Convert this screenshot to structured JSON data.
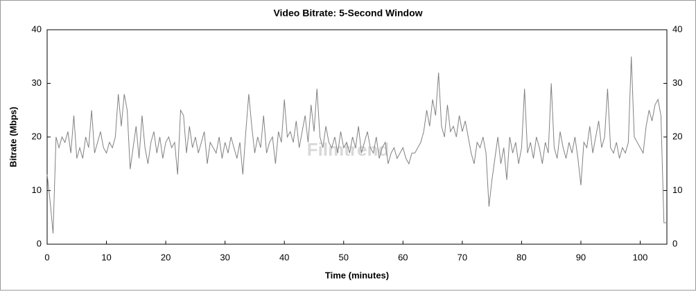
{
  "chart_data": {
    "type": "line",
    "title": "Video Bitrate: 5-Second Window",
    "watermark": "Filmtrend",
    "x_label": "Time (minutes)",
    "y_label": "Bitrate (Mbps)",
    "x": [
      0,
      0.5,
      1,
      1.5,
      2,
      2.5,
      3,
      3.5,
      4,
      4.5,
      5,
      5.5,
      6,
      6.5,
      7,
      7.5,
      8,
      8.5,
      9,
      9.5,
      10,
      10.5,
      11,
      11.5,
      12,
      12.5,
      13,
      13.5,
      14,
      14.5,
      15,
      15.5,
      16,
      16.5,
      17,
      17.5,
      18,
      18.5,
      19,
      19.5,
      20,
      20.5,
      21,
      21.5,
      22,
      22.5,
      23,
      23.5,
      24,
      24.5,
      25,
      25.5,
      26,
      26.5,
      27,
      27.5,
      28,
      28.5,
      29,
      29.5,
      30,
      30.5,
      31,
      31.5,
      32,
      32.5,
      33,
      33.5,
      34,
      34.5,
      35,
      35.5,
      36,
      36.5,
      37,
      37.5,
      38,
      38.5,
      39,
      39.5,
      40,
      40.5,
      41,
      41.5,
      42,
      42.5,
      43,
      43.5,
      44,
      44.5,
      45,
      45.5,
      46,
      46.5,
      47,
      47.5,
      48,
      48.5,
      49,
      49.5,
      50,
      50.5,
      51,
      51.5,
      52,
      52.5,
      53,
      53.5,
      54,
      54.5,
      55,
      55.5,
      56,
      56.5,
      57,
      57.5,
      58,
      58.5,
      59,
      59.5,
      60,
      60.5,
      61,
      61.5,
      62,
      62.5,
      63,
      63.5,
      64,
      64.5,
      65,
      65.5,
      66,
      66.5,
      67,
      67.5,
      68,
      68.5,
      69,
      69.5,
      70,
      70.5,
      71,
      71.5,
      72,
      72.5,
      73,
      73.5,
      74,
      74.5,
      75,
      75.5,
      76,
      76.5,
      77,
      77.5,
      78,
      78.5,
      79,
      79.5,
      80,
      80.5,
      81,
      81.5,
      82,
      82.5,
      83,
      83.5,
      84,
      84.5,
      85,
      85.5,
      86,
      86.5,
      87,
      87.5,
      88,
      88.5,
      89,
      89.5,
      90,
      90.5,
      91,
      91.5,
      92,
      92.5,
      93,
      93.5,
      94,
      94.5,
      95,
      95.5,
      96,
      96.5,
      97,
      97.5,
      98,
      98.5,
      99,
      99.5,
      100,
      100.5,
      101,
      101.5,
      102,
      102.5,
      103,
      103.5,
      104,
      104.5
    ],
    "series": [
      {
        "name": "Video Bitrate",
        "color": "#808080",
        "values": [
          13,
          8,
          2,
          20,
          18,
          20,
          19,
          21,
          17,
          24,
          16,
          18,
          16,
          20,
          18,
          25,
          17,
          19,
          21,
          18,
          17,
          19,
          18,
          20,
          28,
          22,
          28,
          25,
          14,
          18,
          22,
          16,
          24,
          18,
          15,
          19,
          21,
          17,
          20,
          16,
          19,
          20,
          18,
          19,
          13,
          25,
          24,
          17,
          22,
          18,
          20,
          17,
          19,
          21,
          15,
          19,
          18,
          17,
          20,
          16,
          19,
          17,
          20,
          18,
          16,
          19,
          13,
          21,
          28,
          22,
          17,
          20,
          18,
          24,
          17,
          19,
          20,
          15,
          21,
          19,
          27,
          20,
          21,
          19,
          23,
          18,
          21,
          24,
          19,
          26,
          21,
          29,
          20,
          18,
          22,
          19,
          18,
          20,
          17,
          21,
          18,
          19,
          17,
          20,
          18,
          22,
          17,
          19,
          21,
          18,
          17,
          20,
          16,
          18,
          19,
          15,
          17,
          18,
          16,
          17,
          18,
          16,
          15,
          17,
          17,
          18,
          19,
          21,
          25,
          22,
          27,
          24,
          32,
          22,
          20,
          26,
          21,
          22,
          20,
          24,
          21,
          23,
          20,
          17,
          15,
          19,
          18,
          20,
          17,
          7,
          12,
          16,
          20,
          15,
          18,
          12,
          20,
          17,
          19,
          15,
          18,
          29,
          17,
          19,
          16,
          20,
          18,
          15,
          19,
          17,
          30,
          18,
          16,
          21,
          18,
          16,
          19,
          17,
          20,
          16,
          11,
          19,
          18,
          22,
          17,
          20,
          23,
          18,
          20,
          29,
          18,
          17,
          19,
          16,
          18,
          17,
          19,
          35,
          20,
          19,
          18,
          17,
          22,
          25,
          23,
          26,
          27,
          24,
          4,
          4
        ]
      }
    ],
    "xlim": [
      0,
      104.5
    ],
    "xticks": [
      0,
      10,
      20,
      30,
      40,
      50,
      60,
      70,
      80,
      90,
      100
    ],
    "ylim": [
      0,
      40
    ],
    "yticks": [
      0,
      10,
      20,
      30,
      40
    ],
    "right_axis": true
  }
}
